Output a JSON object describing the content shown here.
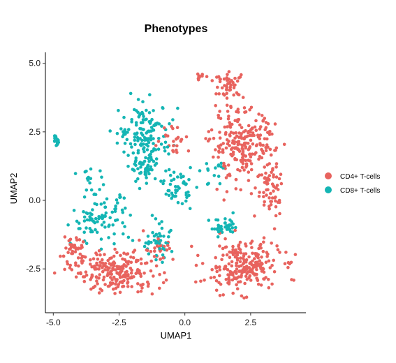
{
  "chart_data": {
    "type": "scatter",
    "title": "Phenotypes",
    "xlabel": "UMAP1",
    "ylabel": "UMAP2",
    "xlim": [
      -5.3,
      4.6
    ],
    "ylim": [
      -4.1,
      5.4
    ],
    "x_ticks": [
      -5.0,
      -2.5,
      0.0,
      2.5
    ],
    "x_tick_labels": [
      "-5.0",
      "-2.5",
      "0.0",
      "2.5"
    ],
    "y_ticks": [
      -2.5,
      0.0,
      2.5,
      5.0
    ],
    "y_tick_labels": [
      "-2.5",
      "0.0",
      "2.5",
      "5.0"
    ],
    "grid": false,
    "legend_position": "right",
    "series": [
      {
        "name": "CD4+ T-cells",
        "color": "#E8635E",
        "clusters": [
          {
            "center": [
              -2.5,
              -2.6
            ],
            "spread": [
              1.4,
              0.7
            ],
            "count": 220
          },
          {
            "center": [
              -4.3,
              -1.9
            ],
            "spread": [
              0.4,
              0.7
            ],
            "count": 45
          },
          {
            "center": [
              2.2,
              -2.4
            ],
            "spread": [
              1.3,
              0.8
            ],
            "count": 240
          },
          {
            "center": [
              2.2,
              2.0
            ],
            "spread": [
              1.1,
              1.2
            ],
            "count": 240
          },
          {
            "center": [
              1.7,
              4.2
            ],
            "spread": [
              0.5,
              0.4
            ],
            "count": 45
          },
          {
            "center": [
              0.6,
              4.5
            ],
            "spread": [
              0.2,
              0.1
            ],
            "count": 12
          },
          {
            "center": [
              3.3,
              0.4
            ],
            "spread": [
              0.5,
              1.0
            ],
            "count": 60
          },
          {
            "center": [
              -0.4,
              2.3
            ],
            "spread": [
              0.5,
              0.5
            ],
            "count": 25
          },
          {
            "center": [
              -1.0,
              -1.7
            ],
            "spread": [
              0.5,
              0.5
            ],
            "count": 20
          }
        ]
      },
      {
        "name": "CD8+ T-cells",
        "color": "#14B5B4",
        "clusters": [
          {
            "center": [
              -1.5,
              2.5
            ],
            "spread": [
              0.9,
              0.9
            ],
            "count": 130
          },
          {
            "center": [
              -1.5,
              1.2
            ],
            "spread": [
              0.5,
              0.5
            ],
            "count": 60
          },
          {
            "center": [
              -0.3,
              0.5
            ],
            "spread": [
              0.5,
              0.6
            ],
            "count": 50
          },
          {
            "center": [
              -3.2,
              -0.7
            ],
            "spread": [
              1.0,
              0.8
            ],
            "count": 90
          },
          {
            "center": [
              -3.6,
              0.8
            ],
            "spread": [
              0.4,
              0.5
            ],
            "count": 15
          },
          {
            "center": [
              -4.9,
              2.2
            ],
            "spread": [
              0.1,
              0.2
            ],
            "count": 14
          },
          {
            "center": [
              -1.0,
              -1.6
            ],
            "spread": [
              0.7,
              0.6
            ],
            "count": 45
          },
          {
            "center": [
              1.5,
              -1.0
            ],
            "spread": [
              0.5,
              0.3
            ],
            "count": 40
          },
          {
            "center": [
              1.2,
              1.0
            ],
            "spread": [
              0.5,
              0.5
            ],
            "count": 15
          }
        ]
      }
    ]
  }
}
